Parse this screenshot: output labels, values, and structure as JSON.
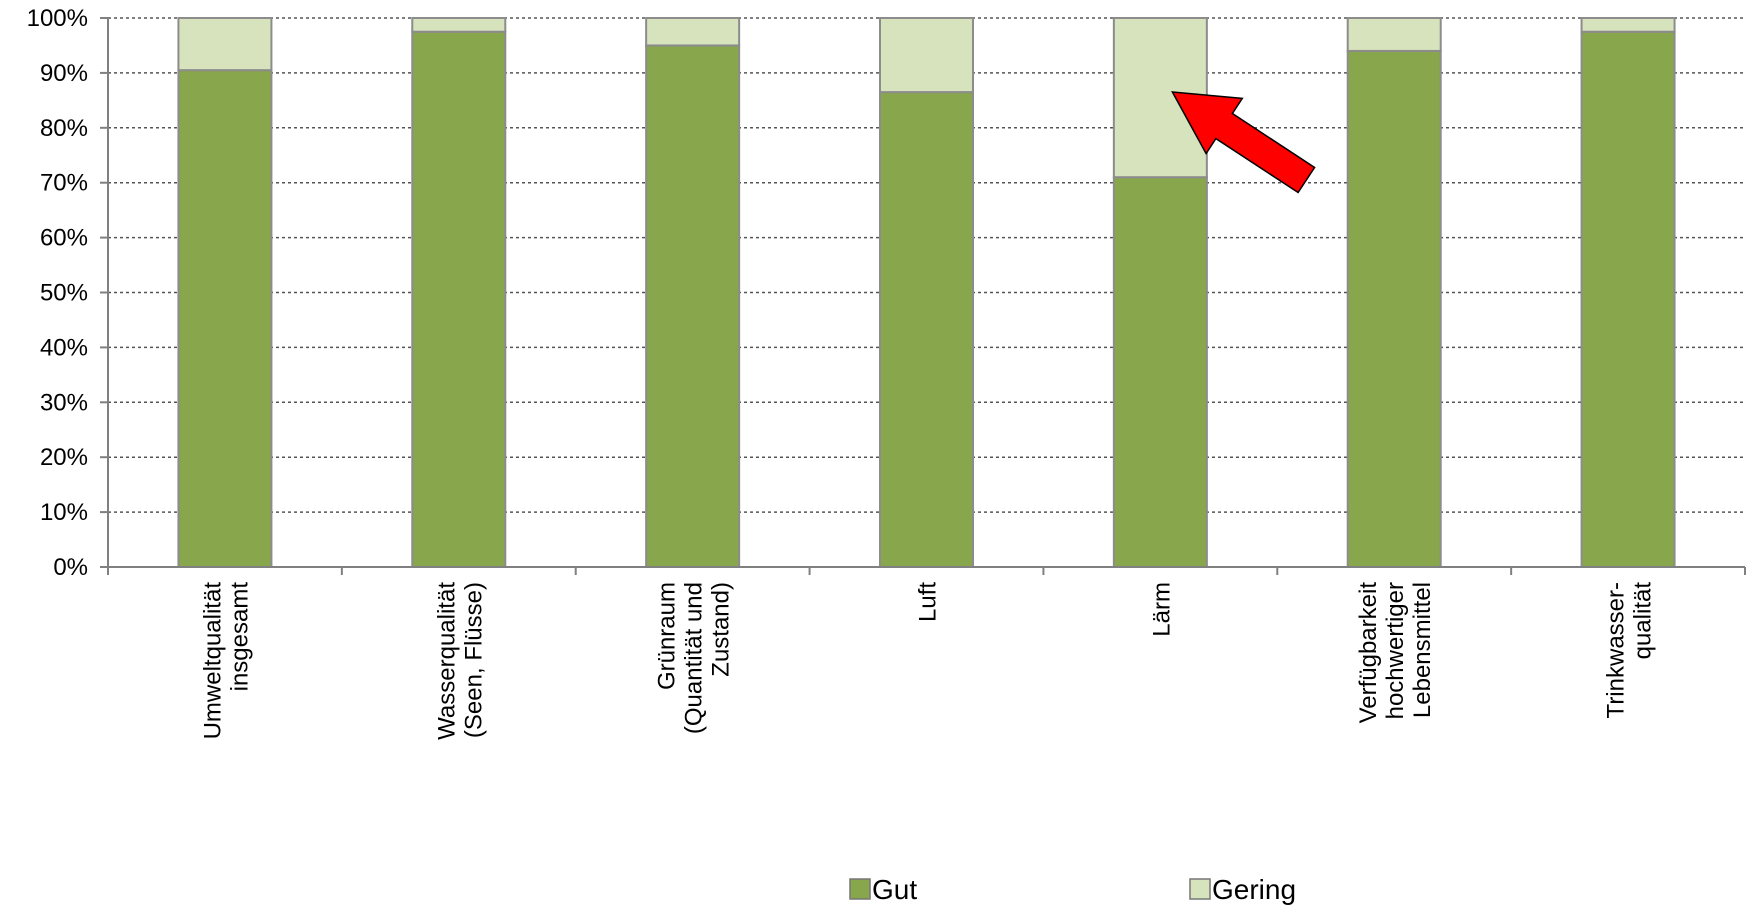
{
  "chart_data": {
    "type": "bar",
    "stacked": true,
    "ylim": [
      0,
      100
    ],
    "y_ticks": [
      "0%",
      "10%",
      "20%",
      "30%",
      "40%",
      "50%",
      "60%",
      "70%",
      "80%",
      "90%",
      "100%"
    ],
    "grid": "horizontal dotted",
    "legend_position": "bottom",
    "categories": [
      [
        "Umweltqualität",
        "insgesamt"
      ],
      [
        "Wasserqualität",
        "(Seen, Flüsse)"
      ],
      [
        "Grünraum",
        "(Quantität und",
        "Zustand)"
      ],
      [
        "Luft"
      ],
      [
        "Lärm"
      ],
      [
        "Verfügbarkeit",
        "hochwertiger",
        "Lebensmittel"
      ],
      [
        "Trinkwasser-",
        "qualität"
      ]
    ],
    "series": [
      {
        "name": "Gut",
        "color": "#88a64b",
        "values": [
          90.5,
          97.5,
          95,
          86.5,
          71,
          94,
          97.5
        ]
      },
      {
        "name": "Gering",
        "color": "#d6e3bc",
        "values": [
          9.5,
          2.5,
          5,
          13.5,
          29,
          6,
          2.5
        ]
      }
    ],
    "annotation": {
      "type": "arrow",
      "color": "#ff0000",
      "points_to_category": 4
    }
  }
}
